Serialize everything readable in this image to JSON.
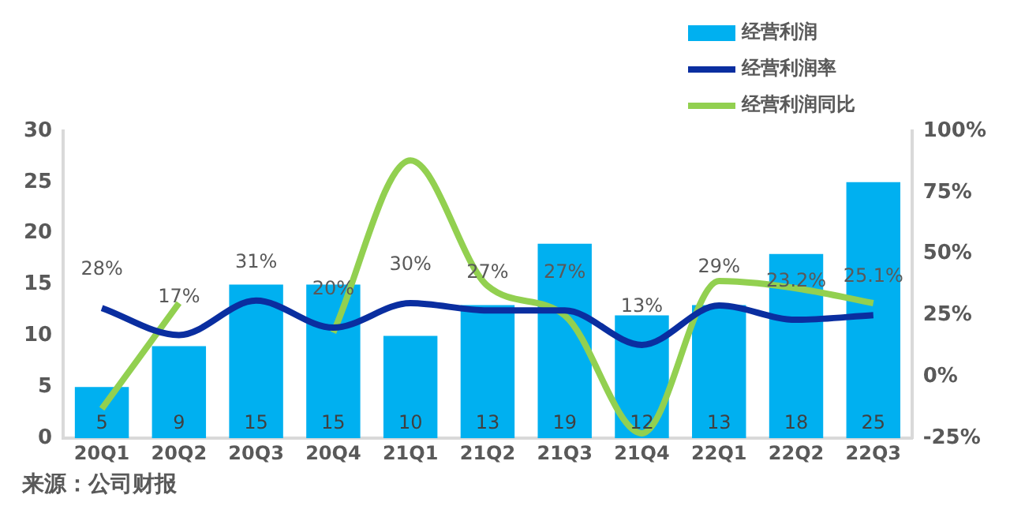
{
  "chart_data": {
    "type": "bar",
    "categories": [
      "20Q1",
      "20Q2",
      "20Q3",
      "20Q4",
      "21Q1",
      "21Q2",
      "21Q3",
      "21Q4",
      "22Q1",
      "22Q2",
      "22Q3"
    ],
    "series": [
      {
        "name": "经营利润",
        "color": "#00b0f0",
        "values": [
          5,
          9,
          15,
          15,
          10,
          13,
          19,
          12,
          13,
          18,
          25
        ],
        "value_labels": [
          "5",
          "9",
          "15",
          "15",
          "10",
          "13",
          "19",
          "12",
          "13",
          "18",
          "25"
        ]
      },
      {
        "name": "经营利润率",
        "type": "line",
        "axis": "y2",
        "color": "#0a2ea0",
        "values": [
          28,
          17,
          31,
          20,
          30,
          27,
          27,
          13,
          29,
          23.2,
          25.1
        ],
        "value_labels": [
          "28%",
          "17%",
          "31%",
          "20%",
          "30%",
          "27%",
          "27%",
          "13%",
          "29%",
          "23.2%",
          "25.1%"
        ]
      },
      {
        "name": "经营利润同比",
        "type": "line",
        "axis": "y2",
        "color": "#92d050",
        "values": [
          -13,
          30,
          null,
          18,
          88,
          37,
          25,
          -23,
          39,
          36,
          30
        ]
      }
    ],
    "ylim": [
      0,
      30
    ],
    "yticks": [
      0,
      5,
      10,
      15,
      20,
      25,
      30
    ],
    "y2lim": [
      -25,
      100
    ],
    "y2ticks": [
      {
        "value": -25,
        "label": "-25%"
      },
      {
        "value": 0,
        "label": "0%"
      },
      {
        "value": 25,
        "label": "25%"
      },
      {
        "value": 50,
        "label": "50%"
      },
      {
        "value": 75,
        "label": "75%"
      },
      {
        "value": 100,
        "label": "100%"
      }
    ],
    "legend": "top right",
    "grid": false,
    "marker": "none",
    "annotations": [
      "来源：公司财报"
    ]
  }
}
